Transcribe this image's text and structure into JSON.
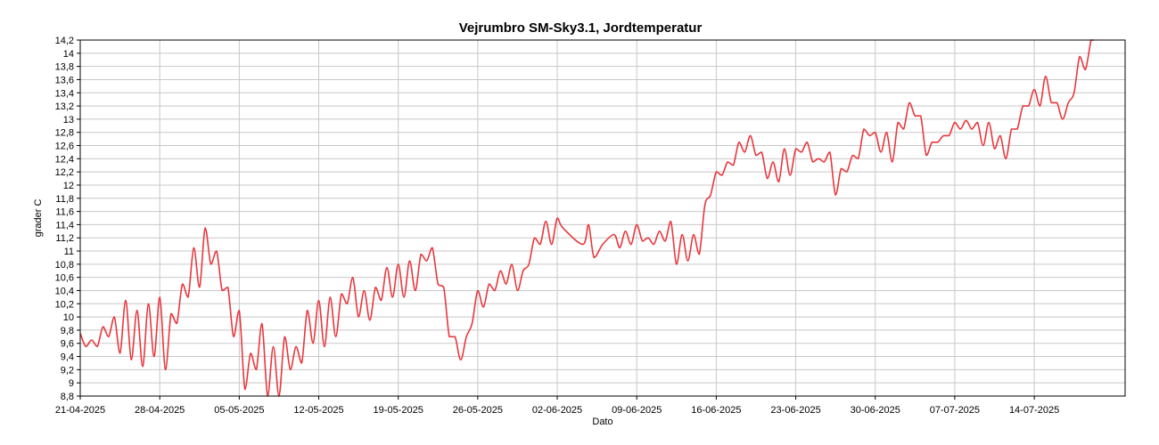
{
  "chart_data": {
    "type": "line",
    "title": "Vejrumbro SM-Sky3.1, Jordtemperatur",
    "xlabel": "Dato",
    "ylabel": "grader C",
    "ylim": [
      8.8,
      14.2
    ],
    "yticks": [
      "8,8",
      "9",
      "9,2",
      "9,4",
      "9,6",
      "9,8",
      "10",
      "10,2",
      "10,4",
      "10,6",
      "10,8",
      "11",
      "11,2",
      "11,4",
      "11,6",
      "11,8",
      "12",
      "12,2",
      "12,4",
      "12,6",
      "12,8",
      "13",
      "13,2",
      "13,4",
      "13,6",
      "13,8",
      "14",
      "14,2"
    ],
    "xlim": [
      "2025-04-21",
      "2025-07-22"
    ],
    "xticks": [
      {
        "date": "2025-04-21",
        "label": "21-04-2025"
      },
      {
        "date": "2025-04-28",
        "label": "28-04-2025"
      },
      {
        "date": "2025-05-05",
        "label": "05-05-2025"
      },
      {
        "date": "2025-05-12",
        "label": "12-05-2025"
      },
      {
        "date": "2025-05-19",
        "label": "19-05-2025"
      },
      {
        "date": "2025-05-26",
        "label": "26-05-2025"
      },
      {
        "date": "2025-06-02",
        "label": "02-06-2025"
      },
      {
        "date": "2025-06-09",
        "label": "09-06-2025"
      },
      {
        "date": "2025-06-16",
        "label": "16-06-2025"
      },
      {
        "date": "2025-06-23",
        "label": "23-06-2025"
      },
      {
        "date": "2025-06-30",
        "label": "30-06-2025"
      },
      {
        "date": "2025-07-07",
        "label": "07-07-2025"
      },
      {
        "date": "2025-07-14",
        "label": "14-07-2025"
      }
    ],
    "grid": true,
    "series": [
      {
        "color": "#e8373c",
        "points": [
          {
            "x": "2025-04-21 00:00",
            "y": 9.75
          },
          {
            "x": "2025-04-21 12:00",
            "y": 9.55
          },
          {
            "x": "2025-04-22 00:00",
            "y": 9.65
          },
          {
            "x": "2025-04-22 12:00",
            "y": 9.55
          },
          {
            "x": "2025-04-23 00:00",
            "y": 9.85
          },
          {
            "x": "2025-04-23 12:00",
            "y": 9.7
          },
          {
            "x": "2025-04-24 00:00",
            "y": 10.0
          },
          {
            "x": "2025-04-24 12:00",
            "y": 9.45
          },
          {
            "x": "2025-04-25 00:00",
            "y": 10.25
          },
          {
            "x": "2025-04-25 12:00",
            "y": 9.35
          },
          {
            "x": "2025-04-26 00:00",
            "y": 10.1
          },
          {
            "x": "2025-04-26 12:00",
            "y": 9.25
          },
          {
            "x": "2025-04-27 00:00",
            "y": 10.2
          },
          {
            "x": "2025-04-27 12:00",
            "y": 9.4
          },
          {
            "x": "2025-04-28 00:00",
            "y": 10.3
          },
          {
            "x": "2025-04-28 12:00",
            "y": 9.2
          },
          {
            "x": "2025-04-29 00:00",
            "y": 10.05
          },
          {
            "x": "2025-04-29 12:00",
            "y": 9.9
          },
          {
            "x": "2025-04-30 00:00",
            "y": 10.5
          },
          {
            "x": "2025-04-30 12:00",
            "y": 10.3
          },
          {
            "x": "2025-05-01 00:00",
            "y": 11.05
          },
          {
            "x": "2025-05-01 12:00",
            "y": 10.45
          },
          {
            "x": "2025-05-02 00:00",
            "y": 11.35
          },
          {
            "x": "2025-05-02 12:00",
            "y": 10.8
          },
          {
            "x": "2025-05-03 00:00",
            "y": 11.0
          },
          {
            "x": "2025-05-03 12:00",
            "y": 10.4
          },
          {
            "x": "2025-05-04 00:00",
            "y": 10.45
          },
          {
            "x": "2025-05-04 12:00",
            "y": 9.7
          },
          {
            "x": "2025-05-05 00:00",
            "y": 10.1
          },
          {
            "x": "2025-05-05 12:00",
            "y": 8.9
          },
          {
            "x": "2025-05-06 00:00",
            "y": 9.45
          },
          {
            "x": "2025-05-06 12:00",
            "y": 9.2
          },
          {
            "x": "2025-05-07 00:00",
            "y": 9.9
          },
          {
            "x": "2025-05-07 12:00",
            "y": 8.8
          },
          {
            "x": "2025-05-08 00:00",
            "y": 9.55
          },
          {
            "x": "2025-05-08 12:00",
            "y": 8.8
          },
          {
            "x": "2025-05-09 00:00",
            "y": 9.7
          },
          {
            "x": "2025-05-09 12:00",
            "y": 9.2
          },
          {
            "x": "2025-05-10 00:00",
            "y": 9.55
          },
          {
            "x": "2025-05-10 12:00",
            "y": 9.3
          },
          {
            "x": "2025-05-11 00:00",
            "y": 10.1
          },
          {
            "x": "2025-05-11 12:00",
            "y": 9.6
          },
          {
            "x": "2025-05-12 00:00",
            "y": 10.25
          },
          {
            "x": "2025-05-12 12:00",
            "y": 9.55
          },
          {
            "x": "2025-05-13 00:00",
            "y": 10.3
          },
          {
            "x": "2025-05-13 12:00",
            "y": 9.7
          },
          {
            "x": "2025-05-14 00:00",
            "y": 10.35
          },
          {
            "x": "2025-05-14 12:00",
            "y": 10.2
          },
          {
            "x": "2025-05-15 00:00",
            "y": 10.6
          },
          {
            "x": "2025-05-15 12:00",
            "y": 10.0
          },
          {
            "x": "2025-05-16 00:00",
            "y": 10.4
          },
          {
            "x": "2025-05-16 12:00",
            "y": 9.95
          },
          {
            "x": "2025-05-17 00:00",
            "y": 10.45
          },
          {
            "x": "2025-05-17 12:00",
            "y": 10.25
          },
          {
            "x": "2025-05-18 00:00",
            "y": 10.75
          },
          {
            "x": "2025-05-18 12:00",
            "y": 10.3
          },
          {
            "x": "2025-05-19 00:00",
            "y": 10.8
          },
          {
            "x": "2025-05-19 12:00",
            "y": 10.3
          },
          {
            "x": "2025-05-20 00:00",
            "y": 10.85
          },
          {
            "x": "2025-05-20 12:00",
            "y": 10.4
          },
          {
            "x": "2025-05-21 00:00",
            "y": 10.95
          },
          {
            "x": "2025-05-21 12:00",
            "y": 10.85
          },
          {
            "x": "2025-05-22 00:00",
            "y": 11.05
          },
          {
            "x": "2025-05-22 12:00",
            "y": 10.5
          },
          {
            "x": "2025-05-23 00:00",
            "y": 10.45
          },
          {
            "x": "2025-05-23 12:00",
            "y": 9.7
          },
          {
            "x": "2025-05-24 00:00",
            "y": 9.7
          },
          {
            "x": "2025-05-24 12:00",
            "y": 9.35
          },
          {
            "x": "2025-05-25 00:00",
            "y": 9.7
          },
          {
            "x": "2025-05-25 12:00",
            "y": 9.9
          },
          {
            "x": "2025-05-26 00:00",
            "y": 10.4
          },
          {
            "x": "2025-05-26 12:00",
            "y": 10.15
          },
          {
            "x": "2025-05-27 00:00",
            "y": 10.5
          },
          {
            "x": "2025-05-27 12:00",
            "y": 10.4
          },
          {
            "x": "2025-05-28 00:00",
            "y": 10.7
          },
          {
            "x": "2025-05-28 12:00",
            "y": 10.5
          },
          {
            "x": "2025-05-29 00:00",
            "y": 10.8
          },
          {
            "x": "2025-05-29 12:00",
            "y": 10.4
          },
          {
            "x": "2025-05-30 00:00",
            "y": 10.7
          },
          {
            "x": "2025-05-30 12:00",
            "y": 10.8
          },
          {
            "x": "2025-05-31 00:00",
            "y": 11.2
          },
          {
            "x": "2025-05-31 12:00",
            "y": 11.1
          },
          {
            "x": "2025-06-01 00:00",
            "y": 11.45
          },
          {
            "x": "2025-06-01 12:00",
            "y": 11.1
          },
          {
            "x": "2025-06-02 00:00",
            "y": 11.5
          },
          {
            "x": "2025-06-02 12:00",
            "y": 11.35
          },
          {
            "x": "2025-06-04 06:00",
            "y": 11.1
          },
          {
            "x": "2025-06-04 18:00",
            "y": 11.4
          },
          {
            "x": "2025-06-05 06:00",
            "y": 10.9
          },
          {
            "x": "2025-06-06 00:00",
            "y": 11.1
          },
          {
            "x": "2025-06-07 00:00",
            "y": 11.25
          },
          {
            "x": "2025-06-07 12:00",
            "y": 11.05
          },
          {
            "x": "2025-06-08 00:00",
            "y": 11.3
          },
          {
            "x": "2025-06-08 12:00",
            "y": 11.1
          },
          {
            "x": "2025-06-09 00:00",
            "y": 11.4
          },
          {
            "x": "2025-06-09 12:00",
            "y": 11.15
          },
          {
            "x": "2025-06-10 00:00",
            "y": 11.2
          },
          {
            "x": "2025-06-10 12:00",
            "y": 11.1
          },
          {
            "x": "2025-06-11 00:00",
            "y": 11.3
          },
          {
            "x": "2025-06-11 12:00",
            "y": 11.15
          },
          {
            "x": "2025-06-12 00:00",
            "y": 11.45
          },
          {
            "x": "2025-06-12 12:00",
            "y": 10.8
          },
          {
            "x": "2025-06-13 00:00",
            "y": 11.25
          },
          {
            "x": "2025-06-13 12:00",
            "y": 10.85
          },
          {
            "x": "2025-06-14 00:00",
            "y": 11.25
          },
          {
            "x": "2025-06-14 12:00",
            "y": 10.95
          },
          {
            "x": "2025-06-15 00:00",
            "y": 11.7
          },
          {
            "x": "2025-06-15 12:00",
            "y": 11.85
          },
          {
            "x": "2025-06-16 00:00",
            "y": 12.2
          },
          {
            "x": "2025-06-16 12:00",
            "y": 12.15
          },
          {
            "x": "2025-06-17 00:00",
            "y": 12.35
          },
          {
            "x": "2025-06-17 12:00",
            "y": 12.3
          },
          {
            "x": "2025-06-18 00:00",
            "y": 12.65
          },
          {
            "x": "2025-06-18 12:00",
            "y": 12.5
          },
          {
            "x": "2025-06-19 00:00",
            "y": 12.75
          },
          {
            "x": "2025-06-19 12:00",
            "y": 12.45
          },
          {
            "x": "2025-06-20 00:00",
            "y": 12.5
          },
          {
            "x": "2025-06-20 12:00",
            "y": 12.1
          },
          {
            "x": "2025-06-21 00:00",
            "y": 12.35
          },
          {
            "x": "2025-06-21 12:00",
            "y": 12.05
          },
          {
            "x": "2025-06-22 00:00",
            "y": 12.55
          },
          {
            "x": "2025-06-22 12:00",
            "y": 12.15
          },
          {
            "x": "2025-06-23 00:00",
            "y": 12.55
          },
          {
            "x": "2025-06-23 12:00",
            "y": 12.5
          },
          {
            "x": "2025-06-24 00:00",
            "y": 12.65
          },
          {
            "x": "2025-06-24 12:00",
            "y": 12.35
          },
          {
            "x": "2025-06-25 00:00",
            "y": 12.4
          },
          {
            "x": "2025-06-25 12:00",
            "y": 12.35
          },
          {
            "x": "2025-06-26 00:00",
            "y": 12.5
          },
          {
            "x": "2025-06-26 12:00",
            "y": 11.85
          },
          {
            "x": "2025-06-27 00:00",
            "y": 12.25
          },
          {
            "x": "2025-06-27 12:00",
            "y": 12.2
          },
          {
            "x": "2025-06-28 00:00",
            "y": 12.45
          },
          {
            "x": "2025-06-28 12:00",
            "y": 12.4
          },
          {
            "x": "2025-06-29 00:00",
            "y": 12.85
          },
          {
            "x": "2025-06-29 12:00",
            "y": 12.75
          },
          {
            "x": "2025-06-30 00:00",
            "y": 12.8
          },
          {
            "x": "2025-06-30 12:00",
            "y": 12.5
          },
          {
            "x": "2025-07-01 00:00",
            "y": 12.8
          },
          {
            "x": "2025-07-01 12:00",
            "y": 12.35
          },
          {
            "x": "2025-07-02 00:00",
            "y": 12.95
          },
          {
            "x": "2025-07-02 12:00",
            "y": 12.85
          },
          {
            "x": "2025-07-03 00:00",
            "y": 13.25
          },
          {
            "x": "2025-07-03 12:00",
            "y": 13.05
          },
          {
            "x": "2025-07-04 00:00",
            "y": 13.05
          },
          {
            "x": "2025-07-04 12:00",
            "y": 12.45
          },
          {
            "x": "2025-07-05 00:00",
            "y": 12.65
          },
          {
            "x": "2025-07-05 12:00",
            "y": 12.65
          },
          {
            "x": "2025-07-06 00:00",
            "y": 12.75
          },
          {
            "x": "2025-07-06 12:00",
            "y": 12.75
          },
          {
            "x": "2025-07-07 00:00",
            "y": 12.95
          },
          {
            "x": "2025-07-07 12:00",
            "y": 12.85
          },
          {
            "x": "2025-07-08 00:00",
            "y": 12.98
          },
          {
            "x": "2025-07-08 12:00",
            "y": 12.85
          },
          {
            "x": "2025-07-09 00:00",
            "y": 12.95
          },
          {
            "x": "2025-07-09 12:00",
            "y": 12.6
          },
          {
            "x": "2025-07-10 00:00",
            "y": 12.95
          },
          {
            "x": "2025-07-10 12:00",
            "y": 12.55
          },
          {
            "x": "2025-07-11 00:00",
            "y": 12.75
          },
          {
            "x": "2025-07-11 12:00",
            "y": 12.4
          },
          {
            "x": "2025-07-12 00:00",
            "y": 12.85
          },
          {
            "x": "2025-07-12 12:00",
            "y": 12.85
          },
          {
            "x": "2025-07-13 00:00",
            "y": 13.2
          },
          {
            "x": "2025-07-13 12:00",
            "y": 13.2
          },
          {
            "x": "2025-07-14 00:00",
            "y": 13.45
          },
          {
            "x": "2025-07-14 12:00",
            "y": 13.2
          },
          {
            "x": "2025-07-15 00:00",
            "y": 13.65
          },
          {
            "x": "2025-07-15 12:00",
            "y": 13.25
          },
          {
            "x": "2025-07-16 00:00",
            "y": 13.25
          },
          {
            "x": "2025-07-16 12:00",
            "y": 13.0
          },
          {
            "x": "2025-07-17 00:00",
            "y": 13.25
          },
          {
            "x": "2025-07-17 12:00",
            "y": 13.4
          },
          {
            "x": "2025-07-18 00:00",
            "y": 13.95
          },
          {
            "x": "2025-07-18 12:00",
            "y": 13.75
          },
          {
            "x": "2025-07-19 00:00",
            "y": 14.2
          },
          {
            "x": "2025-07-19 06:00",
            "y": 14.2
          }
        ]
      }
    ]
  }
}
